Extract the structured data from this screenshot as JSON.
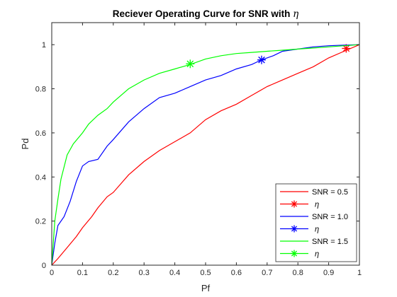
{
  "chart_data": {
    "type": "line",
    "title": "Reciever Operating Curve for SNR with",
    "title_symbol": "η",
    "xlabel": "Pf",
    "ylabel": "Pd",
    "xlim": [
      0,
      1
    ],
    "ylim": [
      0,
      1.1
    ],
    "xticks": [
      "0",
      "0.1",
      "0.2",
      "0.3",
      "0.4",
      "0.5",
      "0.6",
      "0.7",
      "0.8",
      "0.9",
      "1"
    ],
    "yticks": [
      "0",
      "0.2",
      "0.4",
      "0.6",
      "0.8",
      "1"
    ],
    "grid": false,
    "legend_position": "bottom-right",
    "series": [
      {
        "name": "SNR = 0.5",
        "color": "#ff0000",
        "x": [
          0,
          0.02,
          0.05,
          0.08,
          0.1,
          0.13,
          0.15,
          0.18,
          0.2,
          0.25,
          0.3,
          0.35,
          0.4,
          0.45,
          0.5,
          0.55,
          0.6,
          0.65,
          0.7,
          0.75,
          0.8,
          0.85,
          0.9,
          0.95,
          1.0
        ],
        "y": [
          0,
          0.03,
          0.08,
          0.13,
          0.17,
          0.22,
          0.26,
          0.31,
          0.33,
          0.41,
          0.47,
          0.52,
          0.56,
          0.6,
          0.66,
          0.7,
          0.73,
          0.77,
          0.81,
          0.84,
          0.87,
          0.9,
          0.94,
          0.97,
          1.0
        ]
      },
      {
        "name": "η",
        "marker": "asterisk",
        "color": "#ff0000",
        "x": [
          0.957
        ],
        "y": [
          0.983
        ]
      },
      {
        "name": "SNR = 1.0",
        "color": "#0000ff",
        "x": [
          0,
          0.01,
          0.02,
          0.04,
          0.06,
          0.08,
          0.1,
          0.12,
          0.15,
          0.18,
          0.2,
          0.25,
          0.3,
          0.35,
          0.4,
          0.45,
          0.5,
          0.55,
          0.6,
          0.65,
          0.68,
          0.72,
          0.75,
          0.8,
          0.85,
          0.9,
          0.95,
          1.0
        ],
        "y": [
          0,
          0.1,
          0.18,
          0.22,
          0.29,
          0.38,
          0.45,
          0.47,
          0.48,
          0.54,
          0.57,
          0.65,
          0.71,
          0.76,
          0.78,
          0.81,
          0.84,
          0.86,
          0.89,
          0.91,
          0.93,
          0.95,
          0.97,
          0.98,
          0.99,
          0.995,
          0.998,
          1.0
        ]
      },
      {
        "name": "η",
        "marker": "asterisk",
        "color": "#0000ff",
        "x": [
          0.682
        ],
        "y": [
          0.931
        ]
      },
      {
        "name": "SNR = 1.5",
        "color": "#00ff00",
        "x": [
          0,
          0.01,
          0.02,
          0.03,
          0.05,
          0.07,
          0.1,
          0.12,
          0.15,
          0.18,
          0.2,
          0.25,
          0.3,
          0.35,
          0.4,
          0.45,
          0.5,
          0.55,
          0.6,
          0.65,
          0.7,
          0.75,
          0.8,
          0.85,
          0.9,
          0.95,
          1.0
        ],
        "y": [
          0,
          0.2,
          0.3,
          0.39,
          0.5,
          0.55,
          0.6,
          0.64,
          0.68,
          0.71,
          0.74,
          0.8,
          0.84,
          0.87,
          0.89,
          0.91,
          0.935,
          0.95,
          0.96,
          0.965,
          0.97,
          0.975,
          0.98,
          0.985,
          0.99,
          0.995,
          1.0
        ]
      },
      {
        "name": "η",
        "marker": "asterisk",
        "color": "#00ff00",
        "x": [
          0.45
        ],
        "y": [
          0.913
        ]
      }
    ]
  }
}
